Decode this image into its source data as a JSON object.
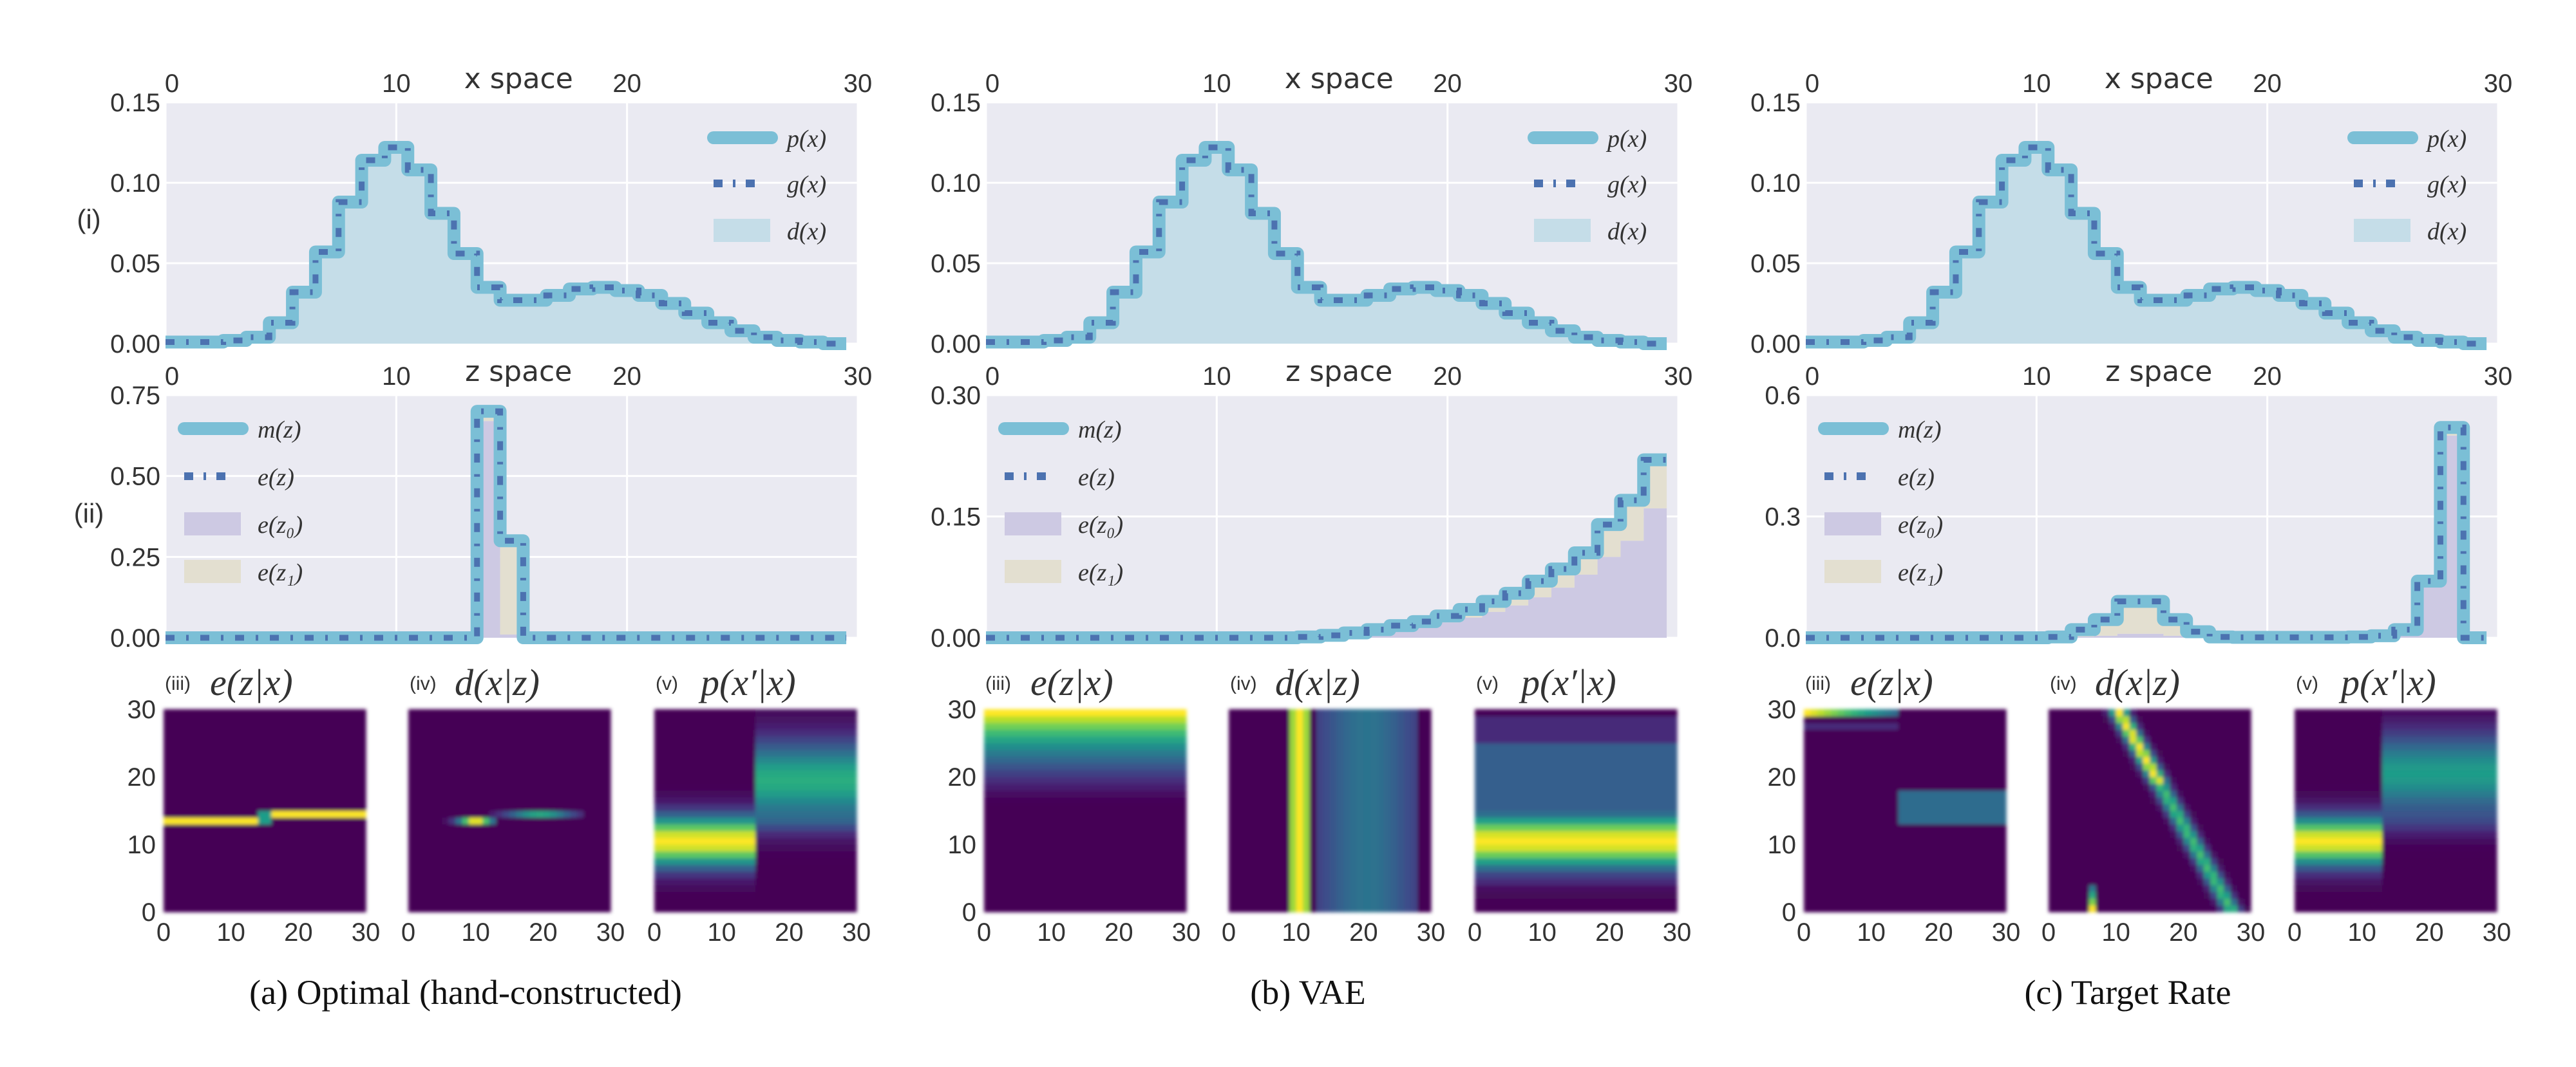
{
  "colors": {
    "axes_bg": "#eaeaf2",
    "grid": "#ffffff",
    "p_line": "#7bbfd6",
    "g_line": "#4c72b0",
    "d_fill": "#c5dde8",
    "ez0_fill": "#cdc9e3",
    "ez1_fill": "#e3dfd0"
  },
  "row_labels": {
    "i": "(i)",
    "ii": "(ii)"
  },
  "legend_x": [
    "p(x)",
    "g(x)",
    "d(x)"
  ],
  "legend_z": [
    "m(z)",
    "e(z)",
    "e(z₀)",
    "e(z₁)"
  ],
  "chart_data": [
    {
      "type": "line",
      "panel": "a",
      "caption": "(a) Optimal (hand-constructed)",
      "x_space": {
        "title": "x space",
        "xlim": [
          0,
          30
        ],
        "ylim": [
          0,
          0.15
        ],
        "xticks": [
          "0",
          "10",
          "20",
          "30"
        ],
        "yticks": [
          "0.00",
          "0.05",
          "0.10",
          "0.15"
        ],
        "values": [
          0.001,
          0.001,
          0.001,
          0.002,
          0.004,
          0.013,
          0.032,
          0.057,
          0.088,
          0.114,
          0.122,
          0.108,
          0.081,
          0.056,
          0.035,
          0.027,
          0.027,
          0.03,
          0.034,
          0.035,
          0.033,
          0.03,
          0.025,
          0.019,
          0.013,
          0.008,
          0.004,
          0.002,
          0.001,
          0.0
        ]
      },
      "z_space": {
        "title": "z space",
        "xlim": [
          0,
          30
        ],
        "ylim": [
          0,
          0.75
        ],
        "xticks": [
          "0",
          "10",
          "20",
          "30"
        ],
        "yticks": [
          "0.00",
          "0.25",
          "0.50",
          "0.75"
        ],
        "m": [
          0,
          0,
          0,
          0,
          0,
          0,
          0,
          0,
          0,
          0,
          0,
          0,
          0,
          0,
          0.7,
          0.3,
          0,
          0,
          0,
          0,
          0,
          0,
          0,
          0,
          0,
          0,
          0,
          0,
          0,
          0
        ],
        "e_z0": [
          0,
          0,
          0,
          0,
          0,
          0,
          0,
          0,
          0,
          0,
          0,
          0,
          0,
          0,
          0.67,
          0.01,
          0,
          0,
          0,
          0,
          0,
          0,
          0,
          0,
          0,
          0,
          0,
          0,
          0,
          0
        ],
        "e_z1": [
          0,
          0,
          0,
          0,
          0,
          0,
          0,
          0,
          0,
          0,
          0,
          0,
          0,
          0,
          0.03,
          0.28,
          0,
          0,
          0,
          0,
          0,
          0,
          0,
          0,
          0,
          0,
          0,
          0,
          0,
          0
        ]
      },
      "heatmaps": [
        {
          "roman": "(iii)",
          "title": "e(z|x)",
          "kind": "a3"
        },
        {
          "roman": "(iv)",
          "title": "d(x|z)",
          "kind": "a4"
        },
        {
          "roman": "(v)",
          "title": "p(x′|x)",
          "kind": "a5"
        }
      ],
      "heatmap_ticks": [
        "0",
        "10",
        "20",
        "30"
      ]
    },
    {
      "type": "line",
      "panel": "b",
      "caption": "(b) VAE",
      "x_space": {
        "title": "x space",
        "xlim": [
          0,
          30
        ],
        "ylim": [
          0,
          0.15
        ],
        "xticks": [
          "0",
          "10",
          "20",
          "30"
        ],
        "yticks": [
          "0.00",
          "0.05",
          "0.10",
          "0.15"
        ],
        "values": [
          0.001,
          0.001,
          0.001,
          0.002,
          0.004,
          0.013,
          0.032,
          0.057,
          0.088,
          0.114,
          0.122,
          0.108,
          0.081,
          0.056,
          0.035,
          0.027,
          0.027,
          0.03,
          0.034,
          0.035,
          0.033,
          0.03,
          0.025,
          0.019,
          0.013,
          0.008,
          0.004,
          0.002,
          0.001,
          0.0
        ]
      },
      "z_space": {
        "title": "z space",
        "xlim": [
          0,
          30
        ],
        "ylim": [
          0,
          0.3
        ],
        "xticks": [
          "0",
          "10",
          "20",
          "30"
        ],
        "yticks": [
          "0.00",
          "0.15",
          "0.30"
        ],
        "m": [
          0,
          0,
          0,
          0,
          0,
          0,
          0,
          0,
          0,
          0,
          0,
          0,
          0,
          0,
          0.001,
          0.003,
          0.006,
          0.01,
          0.015,
          0.02,
          0.027,
          0.035,
          0.045,
          0.055,
          0.07,
          0.085,
          0.105,
          0.14,
          0.17,
          0.22
        ],
        "e_z0": [
          0,
          0,
          0,
          0,
          0,
          0,
          0,
          0,
          0,
          0,
          0,
          0,
          0,
          0,
          0.001,
          0.002,
          0.004,
          0.007,
          0.01,
          0.014,
          0.019,
          0.025,
          0.032,
          0.04,
          0.05,
          0.062,
          0.078,
          0.1,
          0.12,
          0.16
        ],
        "e_z1": [
          0,
          0,
          0,
          0,
          0,
          0,
          0,
          0,
          0,
          0,
          0,
          0,
          0,
          0,
          0,
          0.001,
          0.002,
          0.003,
          0.005,
          0.006,
          0.008,
          0.01,
          0.013,
          0.015,
          0.02,
          0.023,
          0.027,
          0.04,
          0.05,
          0.06
        ]
      },
      "heatmaps": [
        {
          "roman": "(iii)",
          "title": "e(z|x)",
          "kind": "b3"
        },
        {
          "roman": "(iv)",
          "title": "d(x|z)",
          "kind": "b4"
        },
        {
          "roman": "(v)",
          "title": "p(x′|x)",
          "kind": "b5"
        }
      ],
      "heatmap_ticks": [
        "0",
        "10",
        "20",
        "30"
      ]
    },
    {
      "type": "line",
      "panel": "c",
      "caption": "(c) Target Rate",
      "x_space": {
        "title": "x space",
        "xlim": [
          0,
          30
        ],
        "ylim": [
          0,
          0.15
        ],
        "xticks": [
          "0",
          "10",
          "20",
          "30"
        ],
        "yticks": [
          "0.00",
          "0.05",
          "0.10",
          "0.15"
        ],
        "values": [
          0.001,
          0.001,
          0.001,
          0.002,
          0.004,
          0.013,
          0.032,
          0.057,
          0.088,
          0.114,
          0.122,
          0.108,
          0.081,
          0.056,
          0.035,
          0.027,
          0.027,
          0.03,
          0.034,
          0.035,
          0.033,
          0.03,
          0.025,
          0.019,
          0.013,
          0.008,
          0.004,
          0.002,
          0.001,
          0.0
        ]
      },
      "z_space": {
        "title": "z space",
        "xlim": [
          0,
          30
        ],
        "ylim": [
          0,
          0.6
        ],
        "xticks": [
          "0",
          "10",
          "20",
          "30"
        ],
        "yticks": [
          "0.0",
          "0.3",
          "0.6"
        ],
        "m": [
          0,
          0,
          0,
          0,
          0,
          0,
          0,
          0,
          0,
          0,
          0,
          0.002,
          0.02,
          0.045,
          0.09,
          0.09,
          0.045,
          0.015,
          0.002,
          0.001,
          0.001,
          0.001,
          0.001,
          0.001,
          0.002,
          0.005,
          0.02,
          0.14,
          0.52,
          0
        ],
        "e_z0": [
          0,
          0,
          0,
          0,
          0,
          0,
          0,
          0,
          0,
          0,
          0,
          0,
          0.003,
          0.005,
          0.01,
          0.01,
          0.005,
          0.002,
          0,
          0,
          0,
          0,
          0,
          0,
          0.002,
          0.005,
          0.018,
          0.13,
          0.5,
          0
        ],
        "e_z1": [
          0,
          0,
          0,
          0,
          0,
          0,
          0,
          0,
          0,
          0,
          0,
          0.002,
          0.017,
          0.04,
          0.07,
          0.07,
          0.04,
          0.013,
          0.002,
          0,
          0,
          0,
          0,
          0,
          0,
          0,
          0.002,
          0.01,
          0.02,
          0
        ]
      },
      "heatmaps": [
        {
          "roman": "(iii)",
          "title": "e(z|x)",
          "kind": "c3"
        },
        {
          "roman": "(iv)",
          "title": "d(x|z)",
          "kind": "c4"
        },
        {
          "roman": "(v)",
          "title": "p(x′|x)",
          "kind": "c5"
        }
      ],
      "heatmap_ticks": [
        "0",
        "10",
        "20",
        "30"
      ]
    }
  ]
}
